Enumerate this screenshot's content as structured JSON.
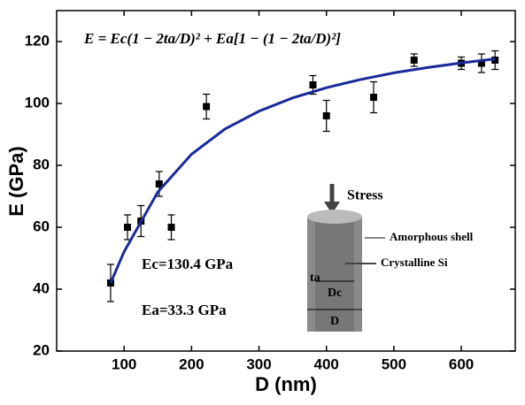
{
  "chart_data": {
    "type": "scatter",
    "formula": "E = Ec(1 − 2ta/D)² + Ea[1 − (1 − 2ta/D)²]",
    "annotations": [
      "Ec=130.4 GPa",
      "Ea=33.3  GPa"
    ],
    "x_label": "D (nm)",
    "y_label": "E (GPa)",
    "xlim": [
      0,
      680
    ],
    "ylim": [
      20,
      130
    ],
    "xticks": [
      100,
      200,
      300,
      400,
      500,
      600
    ],
    "yticks": [
      20,
      40,
      60,
      80,
      100,
      120
    ],
    "series": [
      {
        "color": "#000000",
        "x": [
          80,
          105,
          125,
          152,
          170,
          222,
          380,
          400,
          470,
          530,
          600,
          630,
          650
        ],
        "values": [
          42,
          60,
          62,
          74,
          60,
          99,
          106,
          96,
          102,
          114,
          113,
          113,
          114
        ],
        "errors": [
          6,
          4,
          5,
          4,
          4,
          4,
          3,
          5,
          5,
          2,
          2,
          3,
          3
        ]
      },
      {
        "color": "#1a2a9a",
        "x": [
          80,
          100,
          150,
          200,
          250,
          300,
          350,
          400,
          450,
          500,
          550,
          600,
          650
        ],
        "values": [
          42.0,
          52.1,
          71.4,
          83.6,
          91.8,
          97.5,
          101.8,
          105.1,
          107.7,
          109.9,
          111.6,
          113.1,
          114.4
        ]
      }
    ],
    "inset": {
      "stress": "Stress",
      "shell": "Amorphous shell",
      "core": "Crystalline Si",
      "ta": "ta",
      "dc": "Dc",
      "d": "D"
    }
  }
}
